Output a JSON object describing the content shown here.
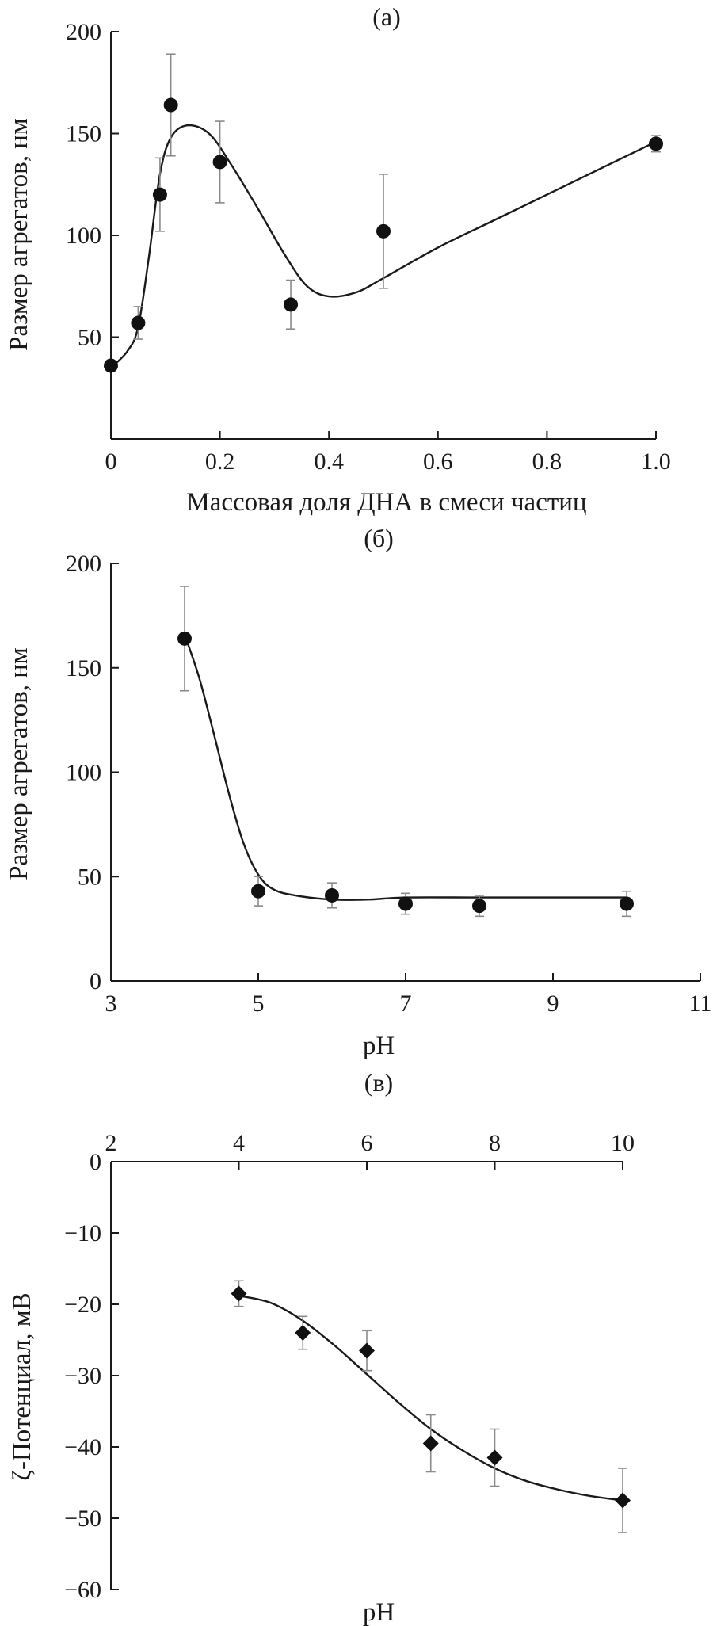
{
  "chart_data": [
    {
      "type": "scatter",
      "panel": "(а)",
      "title": "",
      "xlabel": "Массовая доля ДНА в смеси частиц",
      "ylabel": "Размер агрегатов, нм",
      "xlim": [
        0,
        1.0
      ],
      "ylim": [
        0,
        200
      ],
      "xticks": [
        0,
        0.2,
        0.4,
        0.6,
        0.8,
        1.0
      ],
      "xtick_labels": [
        "0",
        "0.2",
        "0.4",
        "0.6",
        "0.8",
        "1.0"
      ],
      "yticks": [
        50,
        100,
        150,
        200
      ],
      "ytick_labels": [
        "50",
        "100",
        "150",
        "200"
      ],
      "x_axis_position": "bottom",
      "marker": "circle",
      "grid": false,
      "series": [
        {
          "x": [
            0.0,
            0.05,
            0.09,
            0.11,
            0.2,
            0.33,
            0.5,
            1.0
          ],
          "y": [
            36,
            57,
            120,
            164,
            136,
            66,
            102,
            145
          ],
          "err": [
            0,
            8,
            18,
            25,
            20,
            12,
            28,
            4
          ]
        }
      ],
      "fit_curve": {
        "x": [
          0.0,
          0.03,
          0.05,
          0.07,
          0.09,
          0.11,
          0.14,
          0.18,
          0.22,
          0.27,
          0.32,
          0.36,
          0.4,
          0.45,
          0.5,
          0.6,
          0.7,
          0.8,
          0.9,
          1.0
        ],
        "y": [
          35,
          43,
          55,
          90,
          130,
          148,
          154,
          150,
          135,
          113,
          90,
          75,
          70,
          72,
          79,
          94,
          107,
          120,
          133,
          146
        ]
      }
    },
    {
      "type": "scatter",
      "panel": "(б)",
      "title": "",
      "xlabel": "pH",
      "ylabel": "Размер агрегатов, нм",
      "xlim": [
        3,
        11
      ],
      "ylim": [
        0,
        200
      ],
      "xticks": [
        3,
        5,
        7,
        9,
        11
      ],
      "xtick_labels": [
        "3",
        "5",
        "7",
        "9",
        "11"
      ],
      "yticks": [
        0,
        50,
        100,
        150,
        200
      ],
      "ytick_labels": [
        "0",
        "50",
        "100",
        "150",
        "200"
      ],
      "x_axis_position": "bottom",
      "marker": "circle",
      "grid": false,
      "series": [
        {
          "x": [
            4,
            5,
            6,
            7,
            8,
            10
          ],
          "y": [
            164,
            43,
            41,
            37,
            36,
            37
          ],
          "err": [
            25,
            7,
            6,
            5,
            5,
            6
          ]
        }
      ],
      "fit_curve": {
        "x": [
          4,
          4.2,
          4.4,
          4.6,
          4.8,
          5.0,
          5.2,
          5.5,
          6.0,
          6.5,
          7.0,
          8.0,
          9.0,
          10.0
        ],
        "y": [
          166,
          145,
          118,
          90,
          66,
          51,
          44,
          41,
          39,
          39,
          40,
          40,
          40,
          40
        ]
      }
    },
    {
      "type": "scatter",
      "panel": "(в)",
      "title": "",
      "xlabel": "pH",
      "ylabel": "ζ-Потенциал, мВ",
      "xlim": [
        2,
        10
      ],
      "ylim": [
        -60,
        0
      ],
      "xticks": [
        2,
        4,
        6,
        8,
        10
      ],
      "xtick_labels": [
        "2",
        "4",
        "6",
        "8",
        "10"
      ],
      "yticks": [
        -60,
        -50,
        -40,
        -30,
        -20,
        -10,
        0
      ],
      "ytick_labels": [
        "−60",
        "−50",
        "−40",
        "−30",
        "−20",
        "−10",
        "0"
      ],
      "x_axis_position": "top",
      "marker": "diamond",
      "grid": false,
      "series": [
        {
          "x": [
            4,
            5,
            6,
            7,
            8,
            10
          ],
          "y": [
            -18.5,
            -24,
            -26.5,
            -39.5,
            -41.5,
            -47.5
          ],
          "err": [
            1.8,
            2.3,
            2.8,
            4.0,
            4.0,
            4.5
          ]
        }
      ],
      "fit_curve": {
        "x": [
          4,
          4.5,
          5,
          5.5,
          6,
          6.5,
          7,
          7.5,
          8,
          8.5,
          9,
          9.5,
          10
        ],
        "y": [
          -18.8,
          -19.8,
          -22.3,
          -25.8,
          -29.8,
          -33.8,
          -37.5,
          -40.5,
          -43.0,
          -44.8,
          -46.0,
          -46.9,
          -47.5
        ]
      }
    }
  ]
}
